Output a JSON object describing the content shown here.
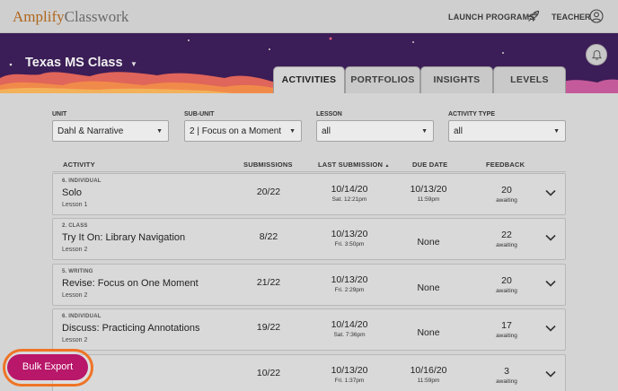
{
  "header": {
    "logo_part1": "Amplify",
    "logo_part2": "Classwork",
    "launch_label": "LAUNCH PROGRAMS",
    "teacher_label": "TEACHER"
  },
  "banner": {
    "class_name": "Texas MS Class"
  },
  "tabs": [
    {
      "label": "ACTIVITIES",
      "active": true
    },
    {
      "label": "PORTFOLIOS",
      "active": false
    },
    {
      "label": "INSIGHTS",
      "active": false
    },
    {
      "label": "LEVELS",
      "active": false
    }
  ],
  "filters": {
    "unit": {
      "label": "UNIT",
      "value": "Dahl & Narrative"
    },
    "subunit": {
      "label": "SUB-UNIT",
      "value": "2 | Focus on a Moment"
    },
    "lesson": {
      "label": "LESSON",
      "value": "all"
    },
    "activity_type": {
      "label": "ACTIVITY TYPE",
      "value": "all"
    }
  },
  "table": {
    "columns": {
      "activity": "ACTIVITY",
      "submissions": "SUBMISSIONS",
      "last_submission": "LAST SUBMISSION",
      "sort_indicator": "▲",
      "due_date": "DUE DATE",
      "feedback": "FEEDBACK"
    },
    "rows": [
      {
        "type": "6. INDIVIDUAL",
        "name": "Solo",
        "lesson": "Lesson 1",
        "submissions": "20/22",
        "last_date": "10/14/20",
        "last_time": "Sat. 12:21pm",
        "due_date": "10/13/20",
        "due_time": "11:59pm",
        "feedback": "20",
        "feedback_sub": "awaiting"
      },
      {
        "type": "2. CLASS",
        "name": "Try It On: Library Navigation",
        "lesson": "Lesson 2",
        "submissions": "8/22",
        "last_date": "10/13/20",
        "last_time": "Fri. 3:50pm",
        "due_date": "None",
        "due_time": "",
        "feedback": "22",
        "feedback_sub": "awaiting"
      },
      {
        "type": "5. WRITING",
        "name": "Revise: Focus on One Moment",
        "lesson": "Lesson 2",
        "submissions": "21/22",
        "last_date": "10/13/20",
        "last_time": "Fri. 2:29pm",
        "due_date": "None",
        "due_time": "",
        "feedback": "20",
        "feedback_sub": "awaiting"
      },
      {
        "type": "6. INDIVIDUAL",
        "name": "Discuss: Practicing Annotations",
        "lesson": "Lesson 2",
        "submissions": "19/22",
        "last_date": "10/14/20",
        "last_time": "Sat. 7:36pm",
        "due_date": "None",
        "due_time": "",
        "feedback": "17",
        "feedback_sub": "awaiting"
      },
      {
        "type": "",
        "name": "",
        "lesson": "",
        "submissions": "10/22",
        "last_date": "10/13/20",
        "last_time": "Fri. 1:37pm",
        "due_date": "10/16/20",
        "due_time": "11:59pm",
        "feedback": "3",
        "feedback_sub": "awaiting"
      }
    ]
  },
  "bulk_export": {
    "label": "Bulk Export"
  }
}
